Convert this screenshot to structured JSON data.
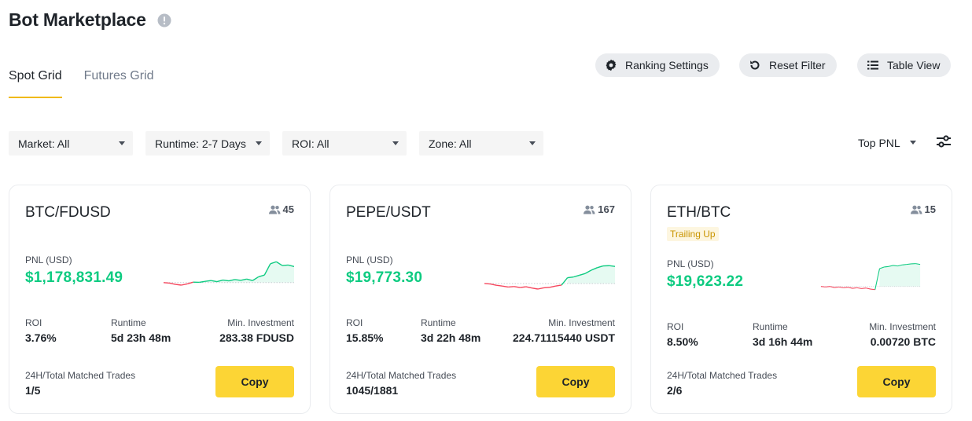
{
  "header": {
    "title": "Bot Marketplace",
    "info_icon": "info-icon"
  },
  "tabs": [
    {
      "label": "Spot Grid",
      "active": true
    },
    {
      "label": "Futures Grid",
      "active": false
    }
  ],
  "toolbar": {
    "ranking_settings": "Ranking Settings",
    "reset_filter": "Reset Filter",
    "table_view": "Table View"
  },
  "filters": [
    {
      "label": "Market: All"
    },
    {
      "label": "Runtime: 2-7 Days"
    },
    {
      "label": "ROI: All"
    },
    {
      "label": "Zone: All"
    }
  ],
  "sort": {
    "label": "Top PNL"
  },
  "labels": {
    "pnl": "PNL (USD)",
    "roi": "ROI",
    "runtime": "Runtime",
    "min_investment": "Min. Investment",
    "trades": "24H/Total Matched Trades",
    "copy": "Copy"
  },
  "cards": [
    {
      "pair": "BTC/FDUSD",
      "followers": "45",
      "pnl": "$1,178,831.49",
      "roi": "3.76%",
      "runtime": "5d 23h 48m",
      "min_investment": "283.38 FDUSD",
      "trades": "1/5",
      "sparkline": [
        0.1,
        0.08,
        0.03,
        0.0,
        0.05,
        0.12,
        0.11,
        0.15,
        0.18,
        0.14,
        0.2,
        0.17,
        0.22,
        0.19,
        0.24,
        0.18,
        0.33,
        0.4,
        0.85,
        0.93,
        0.78,
        0.8,
        0.74
      ]
    },
    {
      "pair": "PEPE/USDT",
      "followers": "167",
      "pnl": "$19,773.30",
      "roi": "15.85%",
      "runtime": "3d 22h 48m",
      "min_investment": "224.71115440 USDT",
      "trades": "1045/1881",
      "sparkline": [
        0.22,
        0.2,
        0.15,
        0.12,
        0.08,
        0.1,
        0.06,
        0.09,
        0.04,
        0.0,
        0.05,
        0.07,
        0.12,
        0.16,
        0.45,
        0.48,
        0.55,
        0.62,
        0.75,
        0.85,
        0.92,
        0.93,
        0.9
      ]
    },
    {
      "pair": "ETH/BTC",
      "followers": "15",
      "tag": "Trailing Up",
      "pnl": "$19,623.22",
      "roi": "8.50%",
      "runtime": "3d 16h 44m",
      "min_investment": "0.00720 BTC",
      "trades": "2/6",
      "sparkline": [
        0.12,
        0.1,
        0.12,
        0.08,
        0.1,
        0.07,
        0.09,
        0.05,
        0.07,
        0.04,
        0.06,
        0.02,
        0.0,
        0.8,
        0.86,
        0.88,
        0.92,
        0.9,
        0.94,
        0.96,
        0.98,
        0.99,
        0.96
      ]
    }
  ],
  "colors": {
    "accent": "#f0b90b",
    "up": "#0ecb81",
    "down": "#f6465d",
    "button": "#fcd535"
  }
}
